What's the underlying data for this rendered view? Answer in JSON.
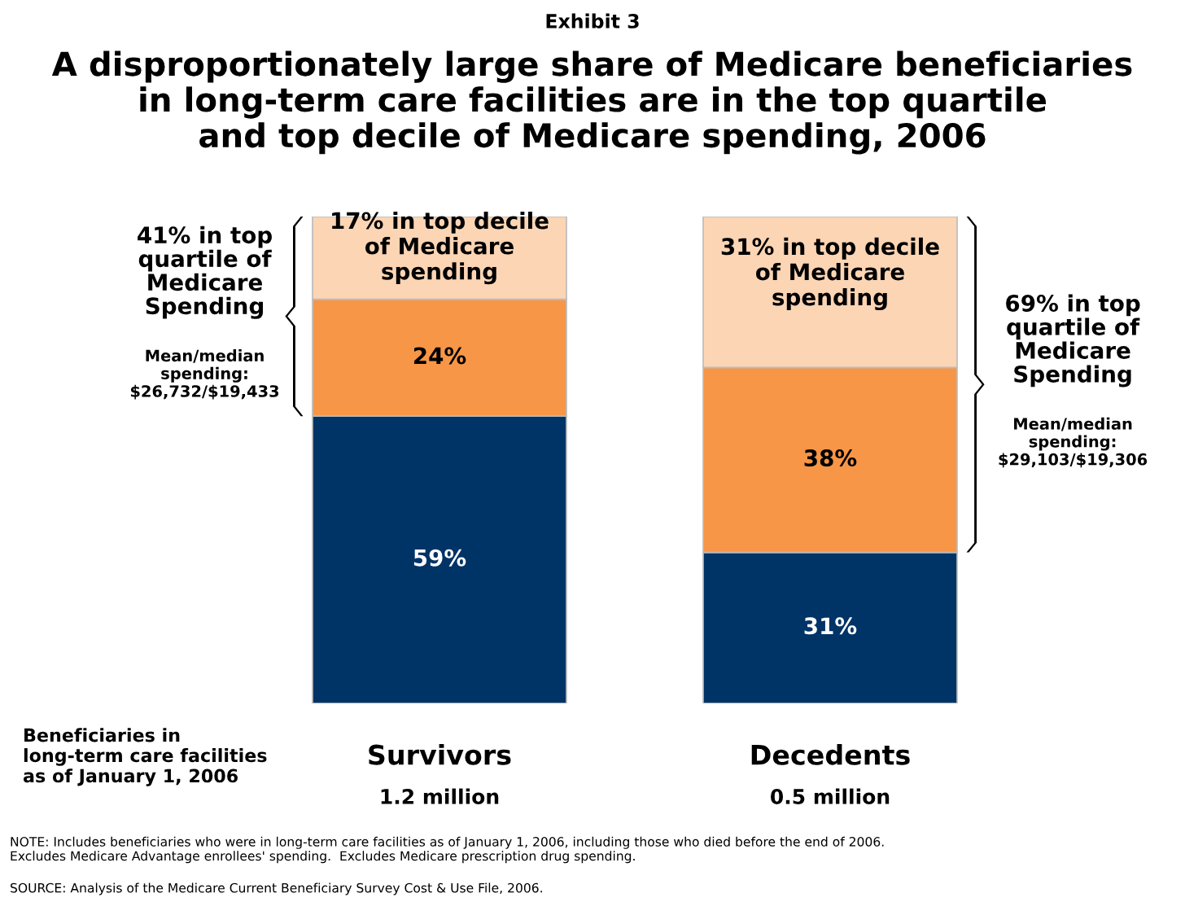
{
  "chart_data": {
    "type": "bar",
    "stacked": true,
    "subtitle": "Exhibit 3",
    "title": "A disproportionately large share of Medicare beneficiaries\nin long-term care facilities are in the top quartile\nand top decile of Medicare spending, 2006",
    "categories": [
      "Survivors",
      "Decedents"
    ],
    "xlabel": "Beneficiaries in\nlong-term care facilities\nas of January 1, 2006",
    "series": [
      {
        "color": "#003366",
        "values": [
          59,
          31
        ],
        "value_labels": [
          "59%",
          "31%"
        ]
      },
      {
        "color": "#f79646",
        "values": [
          24,
          38
        ],
        "value_labels": [
          "24%",
          "38%"
        ]
      },
      {
        "color": "#fcd5b4",
        "values": [
          17,
          31
        ],
        "value_labels": [
          "17% in top decile\nof Medicare\nspending",
          "31% in top decile\nof Medicare\nspending"
        ]
      }
    ],
    "annotations": [
      "41% in top\nquartile of\nMedicare\nSpending",
      "Mean/median\nspending:\n$26,732/$19,433",
      "69% in top\nquartile of\nMedicare\nSpending",
      "Mean/median\nspending:\n$29,103/$19,306",
      "1.2 million",
      "0.5 million",
      "NOTE: Includes beneficiaries who were in long-term care facilities as of January 1, 2006, including those who died before the end of 2006.\nExcludes Medicare Advantage enrollees' spending.  Excludes Medicare prescription drug spending.",
      "SOURCE: Analysis of the Medicare Current Beneficiary Survey Cost & Use File, 2006."
    ],
    "grid": false,
    "legend": false
  }
}
